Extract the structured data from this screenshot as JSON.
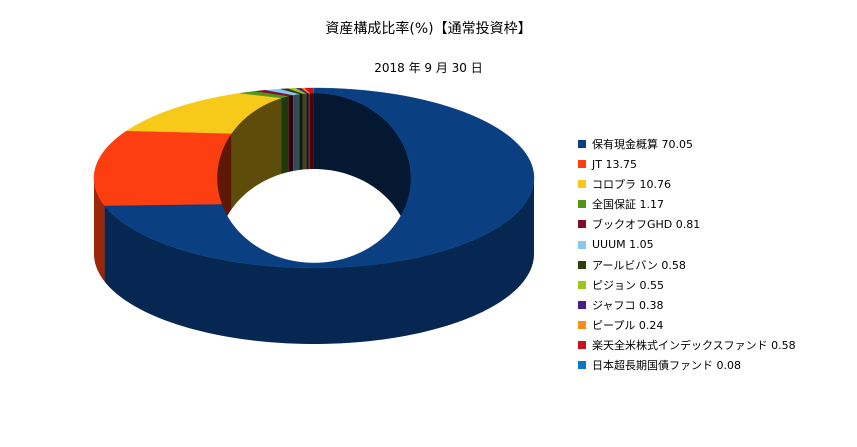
{
  "chart_data": {
    "type": "pie",
    "style": "3d-doughnut",
    "title": "資産構成比率(%)【通常投資枠】",
    "subtitle": "2018 年 9 月 30 日",
    "legend_position": "right",
    "series": [
      {
        "name": "保有現金概算",
        "label": "保有現金概算  70.05",
        "value": 70.05,
        "color": "#0a3f82"
      },
      {
        "name": "JT",
        "label": "JT  13.75",
        "value": 13.75,
        "color": "#fc3e10"
      },
      {
        "name": "コロプラ",
        "label": "コロプラ  10.76",
        "value": 10.76,
        "color": "#f7ca1a"
      },
      {
        "name": "全国保証",
        "label": "全国保証  1.17",
        "value": 1.17,
        "color": "#51961b"
      },
      {
        "name": "ブックオフGHD",
        "label": "ブックオフGHD 0.81",
        "value": 0.81,
        "color": "#820c2a"
      },
      {
        "name": "UUUM",
        "label": "UUUM 1.05",
        "value": 1.05,
        "color": "#86c8f2"
      },
      {
        "name": "アールビバン",
        "label": "アールビバン  0.58",
        "value": 0.58,
        "color": "#2d3d0f"
      },
      {
        "name": "ピジョン",
        "label": "ピジョン  0.55",
        "value": 0.55,
        "color": "#9dc41d"
      },
      {
        "name": "ジャフコ",
        "label": "ジャフコ  0.38",
        "value": 0.38,
        "color": "#4b1e86"
      },
      {
        "name": "ピープル",
        "label": "ピープル  0.24",
        "value": 0.24,
        "color": "#ff8c1a"
      },
      {
        "name": "楽天全米株式インデックスファンド",
        "label": "楽天全米株式インデックスファンド  0.58",
        "value": 0.58,
        "color": "#c9101b"
      },
      {
        "name": "日本超長期国債ファンド",
        "label": "日本超長期国債ファンド  0.08",
        "value": 0.08,
        "color": "#0a79c4"
      }
    ]
  }
}
